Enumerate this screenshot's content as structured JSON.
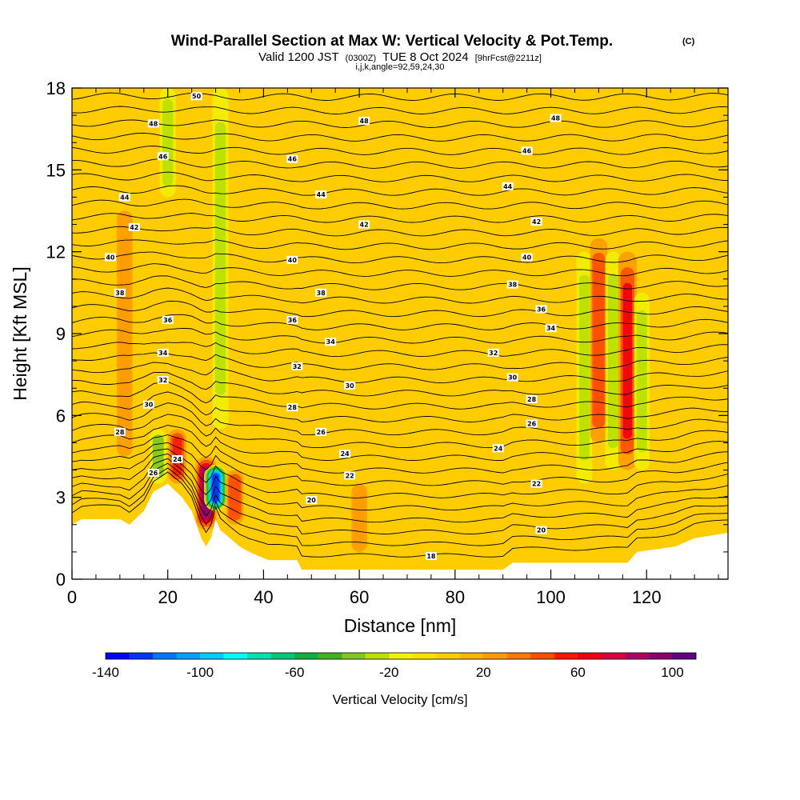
{
  "titles": {
    "main": "Wind-Parallel Section at Max W: Vertical Velocity & Pot.Temp.",
    "main_suffix": "(C)",
    "valid_prefix": "Valid 1200 JST",
    "valid_zulu": "(0300Z)",
    "valid_date": "TUE 8 Oct 2024",
    "forecast": "[9hrFcst@2211z]",
    "params": "i,j,k,angle=92,59,24,30"
  },
  "chart_data": {
    "type": "heatmap",
    "xlabel": "Distance [nm]",
    "ylabel": "Height [Kft MSL]",
    "xlim": [
      0,
      137
    ],
    "ylim": [
      0,
      18
    ],
    "x_ticks": [
      0,
      20,
      40,
      60,
      80,
      100,
      120
    ],
    "y_ticks": [
      0,
      3,
      6,
      9,
      12,
      15,
      18
    ],
    "colorbar": {
      "label": "Vertical Velocity [cm/s]",
      "range": [
        -140,
        110
      ],
      "step": 10,
      "tick_values": [
        -140,
        -100,
        -60,
        -20,
        20,
        60,
        100
      ],
      "colors": [
        "#0000ff",
        "#0033ff",
        "#0077ff",
        "#00a0ff",
        "#00ccff",
        "#00ffff",
        "#00e0b0",
        "#00c878",
        "#10b040",
        "#40b020",
        "#80c820",
        "#b8e000",
        "#f0f000",
        "#ffe000",
        "#ffcc00",
        "#ffb400",
        "#ff9c00",
        "#ff7800",
        "#ff5000",
        "#ff1800",
        "#f00010",
        "#d80040",
        "#b00060",
        "#880070",
        "#600080"
      ]
    },
    "background_w": 0,
    "w_features": [
      {
        "x": 11,
        "y_min": 4.5,
        "y_max": 13.5,
        "w": 25
      },
      {
        "x": 18,
        "y_min": 3.5,
        "y_max": 5.5,
        "w": -40
      },
      {
        "x": 20,
        "y_min": 14.0,
        "y_max": 18.0,
        "w": -30
      },
      {
        "x": 22,
        "y_min": 3.5,
        "y_max": 5.5,
        "w": 55
      },
      {
        "x": 28,
        "y_min": 1.8,
        "y_max": 4.5,
        "w": 95
      },
      {
        "x": 30,
        "y_min": 2.5,
        "y_max": 4.2,
        "w": -130
      },
      {
        "x": 31,
        "y_min": 5.5,
        "y_max": 18.0,
        "w": -30
      },
      {
        "x": 34,
        "y_min": 2.0,
        "y_max": 4.0,
        "w": 45
      },
      {
        "x": 60,
        "y_min": 1.0,
        "y_max": 3.5,
        "w": 25
      },
      {
        "x": 107,
        "y_min": 3.5,
        "y_max": 12.0,
        "w": -25
      },
      {
        "x": 110,
        "y_min": 5.0,
        "y_max": 12.5,
        "w": 45
      },
      {
        "x": 113,
        "y_min": 4.0,
        "y_max": 12.0,
        "w": -25
      },
      {
        "x": 116,
        "y_min": 4.0,
        "y_max": 12.0,
        "w": 60
      },
      {
        "x": 119,
        "y_min": 4.0,
        "y_max": 10.5,
        "w": -25
      }
    ],
    "terrain": {
      "x": [
        0,
        2,
        10,
        12,
        15,
        17,
        20,
        23,
        25,
        26,
        27,
        28,
        29,
        30,
        31,
        33,
        35,
        37,
        41,
        47,
        48,
        58,
        69,
        82,
        90,
        92,
        110,
        116,
        118,
        126,
        130,
        137
      ],
      "height": [
        2.0,
        2.2,
        2.2,
        2.0,
        2.5,
        3.2,
        3.5,
        3.0,
        2.5,
        2.0,
        1.5,
        1.2,
        1.5,
        2.2,
        1.8,
        1.5,
        1.2,
        1.0,
        0.7,
        0.7,
        0.35,
        0.35,
        0.35,
        0.35,
        0.35,
        0.6,
        0.6,
        0.6,
        1.0,
        1.2,
        1.5,
        1.7
      ]
    },
    "theta_levels": [
      17,
      18,
      19,
      20,
      21,
      22,
      23,
      24,
      25,
      26,
      27,
      28,
      29,
      30,
      31,
      32,
      33,
      34,
      35,
      36,
      37,
      38,
      39,
      40,
      41,
      42,
      43,
      44,
      45,
      46,
      47,
      48,
      49,
      50,
      51,
      52
    ],
    "theta_labels": [
      {
        "text": "50",
        "x": 26,
        "y": 17.7
      },
      {
        "text": "48",
        "x": 17,
        "y": 16.7
      },
      {
        "text": "48",
        "x": 61,
        "y": 16.8
      },
      {
        "text": "48",
        "x": 101,
        "y": 16.9
      },
      {
        "text": "46",
        "x": 19,
        "y": 15.5
      },
      {
        "text": "46",
        "x": 46,
        "y": 15.4
      },
      {
        "text": "46",
        "x": 95,
        "y": 15.7
      },
      {
        "text": "44",
        "x": 11,
        "y": 14.0
      },
      {
        "text": "44",
        "x": 52,
        "y": 14.1
      },
      {
        "text": "44",
        "x": 91,
        "y": 14.4
      },
      {
        "text": "42",
        "x": 13,
        "y": 12.9
      },
      {
        "text": "42",
        "x": 61,
        "y": 13.0
      },
      {
        "text": "42",
        "x": 97,
        "y": 13.1
      },
      {
        "text": "40",
        "x": 8,
        "y": 11.8
      },
      {
        "text": "40",
        "x": 46,
        "y": 11.7
      },
      {
        "text": "40",
        "x": 95,
        "y": 11.8
      },
      {
        "text": "38",
        "x": 10,
        "y": 10.5
      },
      {
        "text": "38",
        "x": 52,
        "y": 10.5
      },
      {
        "text": "38",
        "x": 92,
        "y": 10.8
      },
      {
        "text": "36",
        "x": 20,
        "y": 9.5
      },
      {
        "text": "36",
        "x": 46,
        "y": 9.5
      },
      {
        "text": "36",
        "x": 98,
        "y": 9.9
      },
      {
        "text": "34",
        "x": 19,
        "y": 8.3
      },
      {
        "text": "34",
        "x": 54,
        "y": 8.7
      },
      {
        "text": "34",
        "x": 100,
        "y": 9.2
      },
      {
        "text": "32",
        "x": 19,
        "y": 7.3
      },
      {
        "text": "32",
        "x": 47,
        "y": 7.8
      },
      {
        "text": "32",
        "x": 88,
        "y": 8.3
      },
      {
        "text": "30",
        "x": 16,
        "y": 6.4
      },
      {
        "text": "30",
        "x": 58,
        "y": 7.1
      },
      {
        "text": "30",
        "x": 92,
        "y": 7.4
      },
      {
        "text": "28",
        "x": 10,
        "y": 5.4
      },
      {
        "text": "28",
        "x": 46,
        "y": 6.3
      },
      {
        "text": "28",
        "x": 96,
        "y": 6.6
      },
      {
        "text": "26",
        "x": 17,
        "y": 3.9
      },
      {
        "text": "26",
        "x": 52,
        "y": 5.4
      },
      {
        "text": "26",
        "x": 96,
        "y": 5.7
      },
      {
        "text": "24",
        "x": 22,
        "y": 4.4
      },
      {
        "text": "24",
        "x": 57,
        "y": 4.6
      },
      {
        "text": "24",
        "x": 89,
        "y": 4.8
      },
      {
        "text": "22",
        "x": 58,
        "y": 3.8
      },
      {
        "text": "22",
        "x": 97,
        "y": 3.5
      },
      {
        "text": "20",
        "x": 50,
        "y": 2.9
      },
      {
        "text": "20",
        "x": 98,
        "y": 1.8
      },
      {
        "text": "18",
        "x": 75,
        "y": 0.85
      }
    ]
  }
}
